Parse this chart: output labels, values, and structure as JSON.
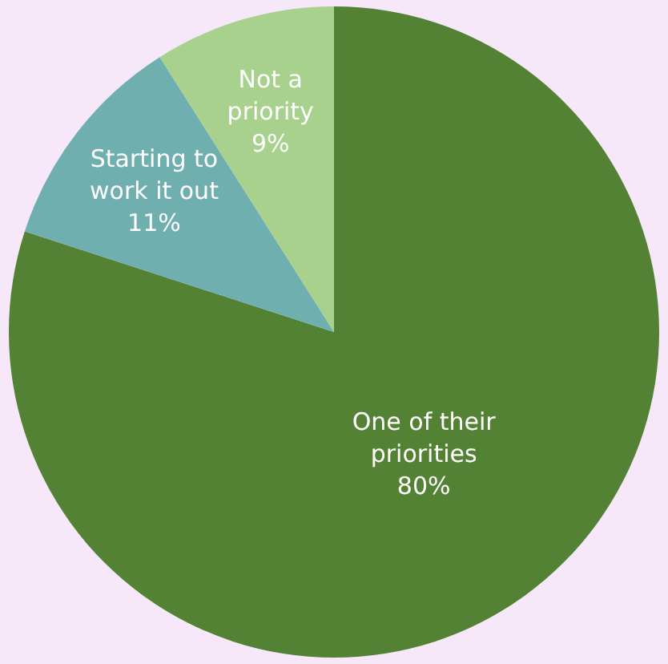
{
  "chart_data": {
    "type": "pie",
    "categories": [
      "One of their priorities",
      "Starting to work it out",
      "Not a priority"
    ],
    "values": [
      80,
      11,
      9
    ],
    "value_labels": [
      "80%",
      "11%",
      "9%"
    ],
    "colors": [
      "#548235",
      "#70afb0",
      "#a9d18e"
    ],
    "legend": false
  }
}
